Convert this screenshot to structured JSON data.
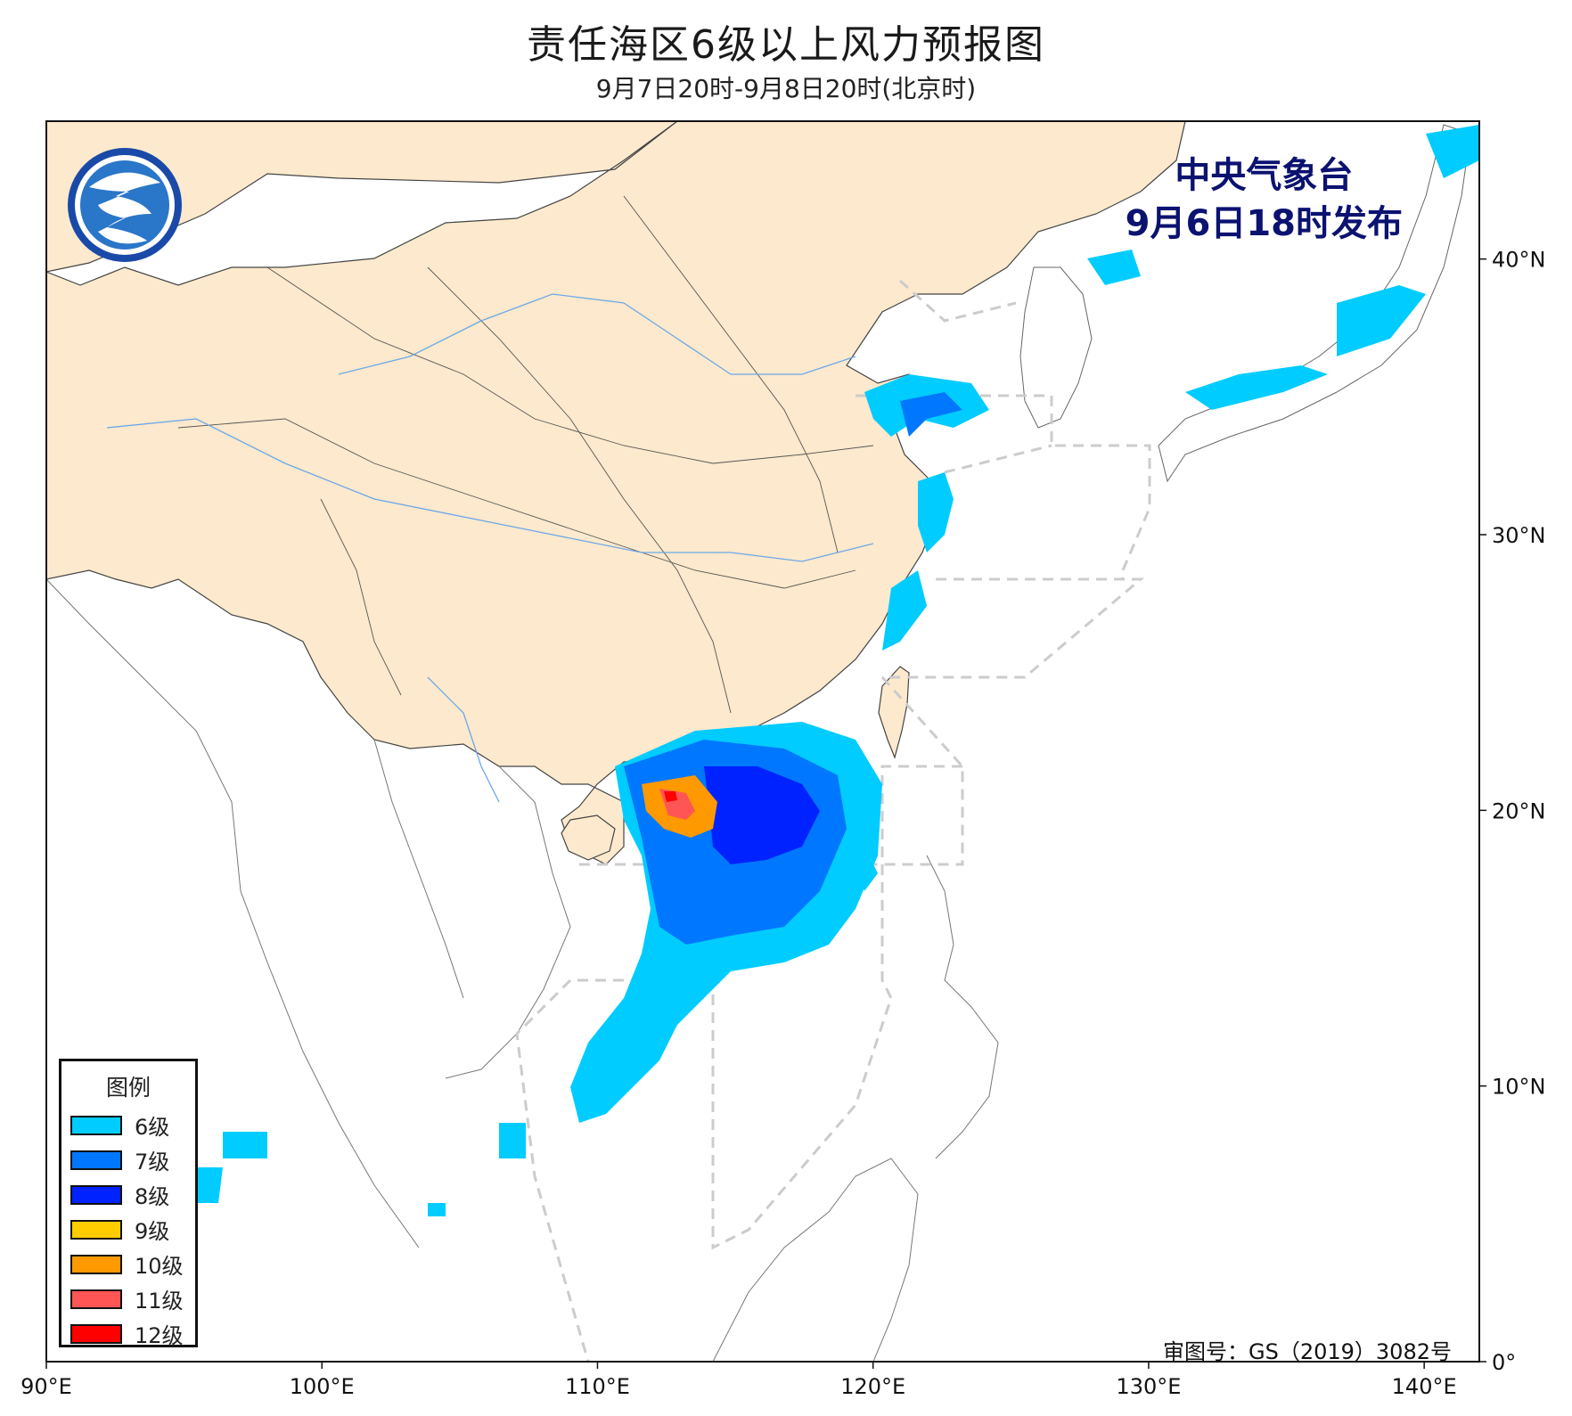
{
  "title": "责任海区6级以上风力预报图",
  "subtitle": "9月7日20时-9月8日20时(北京时)",
  "publisher": {
    "name": "中央气象台",
    "issue_time": "9月6日18时发布"
  },
  "approval_number": "审图号：GS（2019）3082号",
  "logo": {
    "icon": "cma-logo-icon"
  },
  "map": {
    "lon_range": [
      90,
      142
    ],
    "lat_range": [
      0,
      45
    ],
    "x_ticks": [
      "90°E",
      "100°E",
      "110°E",
      "120°E",
      "130°E",
      "140°E"
    ],
    "x_tick_values": [
      90,
      100,
      110,
      120,
      130,
      140
    ],
    "y_ticks": [
      "0°",
      "10°N",
      "20°N",
      "30°N",
      "40°N"
    ],
    "y_tick_values": [
      0,
      10,
      20,
      30,
      40
    ],
    "colors": {
      "china_land": "#fde9cd",
      "other_land": "#ffffff",
      "sea": "#ffffff",
      "zone_lines": "#cccccc",
      "rivers": "#6aa8e8"
    }
  },
  "legend": {
    "title": "图例",
    "items": [
      {
        "label": "6级",
        "color": "#00ccff"
      },
      {
        "label": "7级",
        "color": "#0077ff"
      },
      {
        "label": "8级",
        "color": "#0022ff"
      },
      {
        "label": "9级",
        "color": "#ffcc00"
      },
      {
        "label": "10级",
        "color": "#ff9900"
      },
      {
        "label": "11级",
        "color": "#ff5555"
      },
      {
        "label": "12级",
        "color": "#ff0000"
      }
    ]
  }
}
